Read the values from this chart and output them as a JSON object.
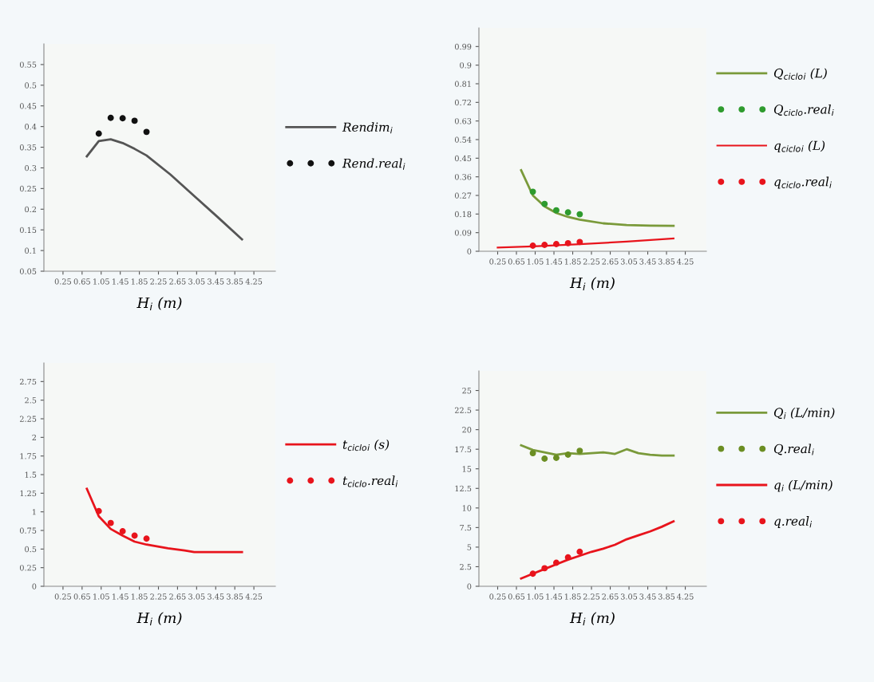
{
  "chart_data": [
    {
      "type": "line",
      "xlabel": "H$_{i}$ (m)",
      "xlim": [
        -0.15,
        4.7
      ],
      "ylim": [
        0.05,
        0.6
      ],
      "xticks": [
        0.25,
        0.65,
        1.05,
        1.45,
        1.85,
        2.25,
        2.65,
        3.05,
        3.45,
        3.85,
        4.25
      ],
      "yticks": [
        0.05,
        0.1,
        0.15,
        0.2,
        0.25,
        0.3,
        0.35,
        0.4,
        0.45,
        0.5,
        0.55
      ],
      "grid": false,
      "legend": "right",
      "series": [
        {
          "name": "Rendim$_{i}$",
          "color": "#555555",
          "x": [
            0.75,
            1.0,
            1.25,
            1.5,
            1.75,
            2.0,
            2.5,
            3.0,
            3.5,
            4.0
          ],
          "values": [
            0.328,
            0.365,
            0.369,
            0.36,
            0.346,
            0.33,
            0.284,
            0.232,
            0.18,
            0.127
          ]
        },
        {
          "name": "Rend.real$_{i}$",
          "type": "scatter",
          "marker": "circle",
          "color": "#111111",
          "x": [
            1.0,
            1.25,
            1.5,
            1.75,
            2.0
          ],
          "values": [
            0.383,
            0.421,
            0.42,
            0.414,
            0.387
          ]
        }
      ]
    },
    {
      "type": "line",
      "xlabel": "H$_{i}$ (m)",
      "xlim": [
        -0.15,
        4.7
      ],
      "ylim": [
        0,
        1.08
      ],
      "xticks": [
        0.25,
        0.65,
        1.05,
        1.45,
        1.85,
        2.25,
        2.65,
        3.05,
        3.45,
        3.85,
        4.25
      ],
      "yticks": [
        0,
        0.09,
        0.18,
        0.27,
        0.36,
        0.45,
        0.54,
        0.63,
        0.72,
        0.81,
        0.9,
        0.99
      ],
      "grid": false,
      "legend": "right",
      "series": [
        {
          "name": "Q$_{ciclo}$$_{i}$ (L)",
          "color": "#7a9a3a",
          "x": [
            0.75,
            1.0,
            1.25,
            1.5,
            1.75,
            2.0,
            2.5,
            3.0,
            3.5,
            4.0
          ],
          "values": [
            0.392,
            0.27,
            0.217,
            0.185,
            0.166,
            0.153,
            0.135,
            0.127,
            0.124,
            0.123
          ]
        },
        {
          "name": "Q$_{ciclo}$.real$_{i}$",
          "type": "scatter",
          "marker": "circle",
          "color": "#2e9b2e",
          "x": [
            1.0,
            1.25,
            1.5,
            1.75,
            2.0
          ],
          "values": [
            0.288,
            0.229,
            0.198,
            0.188,
            0.179
          ]
        },
        {
          "name": "q$_{ciclo}$$_{i}$ (L)",
          "color": "#e8141c",
          "x": [
            0.25,
            1.0,
            2.0,
            3.0,
            4.0
          ],
          "values": [
            0.018,
            0.024,
            0.034,
            0.047,
            0.062
          ]
        },
        {
          "name": "q$_{ciclo}$.real$_{i}$",
          "type": "scatter",
          "marker": "circle",
          "color": "#e8141c",
          "x": [
            1.0,
            1.25,
            1.5,
            1.75,
            2.0
          ],
          "values": [
            0.027,
            0.031,
            0.035,
            0.039,
            0.045
          ]
        }
      ]
    },
    {
      "type": "line",
      "xlabel": "H$_{i}$ (m)",
      "xlim": [
        -0.15,
        4.7
      ],
      "ylim": [
        0,
        3.0
      ],
      "xticks": [
        0.25,
        0.65,
        1.05,
        1.45,
        1.85,
        2.25,
        2.65,
        3.05,
        3.45,
        3.85,
        4.25
      ],
      "yticks": [
        0,
        0.25,
        0.5,
        0.75,
        1,
        1.25,
        1.5,
        1.75,
        2,
        2.25,
        2.5,
        2.75
      ],
      "grid": false,
      "legend": "right",
      "series": [
        {
          "name": "t$_{ciclo}$$_{i}$ (s)",
          "color": "#e8141c",
          "x": [
            0.75,
            1.0,
            1.25,
            1.5,
            1.75,
            2.0,
            2.45,
            2.8,
            3.0,
            4.0
          ],
          "values": [
            1.31,
            0.94,
            0.77,
            0.68,
            0.6,
            0.56,
            0.51,
            0.48,
            0.46,
            0.46
          ]
        },
        {
          "name": "t$_{ciclo}$.real$_{i}$",
          "type": "scatter",
          "marker": "circle",
          "color": "#e8141c",
          "x": [
            1.0,
            1.25,
            1.5,
            1.75,
            2.0
          ],
          "values": [
            1.01,
            0.85,
            0.74,
            0.68,
            0.64
          ]
        }
      ]
    },
    {
      "type": "line",
      "xlabel": "H$_{i}$ (m)",
      "xlim": [
        -0.15,
        4.7
      ],
      "ylim": [
        0,
        27.5
      ],
      "xticks": [
        0.25,
        0.65,
        1.05,
        1.45,
        1.85,
        2.25,
        2.65,
        3.05,
        3.45,
        3.85,
        4.25
      ],
      "yticks": [
        0,
        2.5,
        5,
        7.5,
        10,
        12.5,
        15,
        17.5,
        20,
        22.5,
        25
      ],
      "grid": false,
      "legend": "right",
      "series": [
        {
          "name": "Q$_{i}$ (L/min)",
          "color": "#7a9a3a",
          "x": [
            0.75,
            1.0,
            1.25,
            1.5,
            1.75,
            2.0,
            2.25,
            2.5,
            2.75,
            3.0,
            3.25,
            3.5,
            3.75,
            4.0
          ],
          "values": [
            18.0,
            17.4,
            17.1,
            16.8,
            17.0,
            16.9,
            17.0,
            17.1,
            16.9,
            17.5,
            17.0,
            16.8,
            16.7,
            16.7
          ]
        },
        {
          "name": "Q.real$_{i}$",
          "type": "scatter",
          "marker": "circle",
          "color": "#6b8e23",
          "x": [
            1.0,
            1.25,
            1.5,
            1.75,
            2.0
          ],
          "values": [
            17.0,
            16.3,
            16.4,
            16.8,
            17.3
          ]
        },
        {
          "name": "q$_{i}$ (L/min)",
          "color": "#e8141c",
          "x": [
            0.75,
            1.0,
            1.25,
            1.5,
            1.75,
            2.0,
            2.25,
            2.5,
            2.75,
            3.0,
            3.25,
            3.5,
            3.75,
            4.0
          ],
          "values": [
            1.0,
            1.6,
            2.2,
            2.8,
            3.4,
            3.9,
            4.4,
            4.8,
            5.3,
            6.0,
            6.5,
            7.0,
            7.6,
            8.3
          ]
        },
        {
          "name": "q.real$_{i}$",
          "type": "scatter",
          "marker": "circle",
          "color": "#e8141c",
          "x": [
            1.0,
            1.25,
            1.5,
            1.75,
            2.0
          ],
          "values": [
            1.6,
            2.3,
            3.0,
            3.7,
            4.4
          ]
        }
      ]
    }
  ]
}
